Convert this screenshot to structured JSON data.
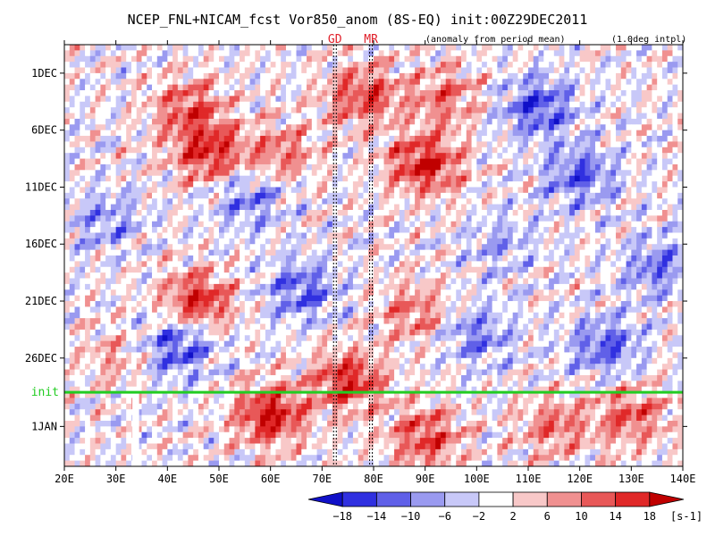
{
  "chart_data": {
    "type": "heatmap",
    "title": "NCEP_FNL+NICAM_fcst Vor850_anom (8S-EQ) init:00Z29DEC2011",
    "subtitle_left": "(anomaly from period mean)",
    "subtitle_right": "(1.0deg intpl)",
    "x_range": [
      20,
      140
    ],
    "x_ticks": [
      20,
      30,
      40,
      50,
      60,
      70,
      80,
      90,
      100,
      110,
      120,
      130,
      140
    ],
    "x_tick_labels": [
      "20E",
      "30E",
      "40E",
      "50E",
      "60E",
      "70E",
      "80E",
      "90E",
      "100E",
      "110E",
      "120E",
      "130E",
      "140E"
    ],
    "y_tick_labels": [
      "1DEC",
      "6DEC",
      "11DEC",
      "16DEC",
      "21DEC",
      "26DEC",
      "1JAN"
    ],
    "y_tick_days": [
      1,
      6,
      11,
      16,
      21,
      26,
      32
    ],
    "y_range_days": [
      -1.5,
      35.5
    ],
    "init_day": 29,
    "init_label": "init",
    "markers": [
      {
        "label": "GD",
        "lon": 72.5
      },
      {
        "label": "MR",
        "lon": 79.5
      }
    ],
    "colorbar": {
      "levels": [
        -18,
        -14,
        -10,
        -6,
        -2,
        2,
        6,
        10,
        14,
        18
      ],
      "labels": [
        "−18",
        "−14",
        "−10",
        "−6",
        "−2",
        "2",
        "6",
        "10",
        "14",
        "18"
      ],
      "colors": [
        "#1010c8",
        "#3030e0",
        "#6060e8",
        "#9a9af0",
        "#c8c8f8",
        "#ffffff",
        "#f8c8c8",
        "#f09090",
        "#e85858",
        "#e02828",
        "#c00000"
      ],
      "unit": "[s-1]"
    },
    "features": [
      {
        "lon": 44,
        "day": 4,
        "value": 12
      },
      {
        "lon": 48,
        "day": 8,
        "value": 16
      },
      {
        "lon": 56,
        "day": 12,
        "value": -10
      },
      {
        "lon": 62,
        "day": 8,
        "value": 10
      },
      {
        "lon": 66,
        "day": 20,
        "value": -12
      },
      {
        "lon": 78,
        "day": 3,
        "value": 14
      },
      {
        "lon": 90,
        "day": 9,
        "value": 18
      },
      {
        "lon": 94,
        "day": 3,
        "value": 10
      },
      {
        "lon": 112,
        "day": 4,
        "value": -14
      },
      {
        "lon": 120,
        "day": 10,
        "value": -12
      },
      {
        "lon": 46,
        "day": 21,
        "value": 16
      },
      {
        "lon": 42,
        "day": 25,
        "value": -14
      },
      {
        "lon": 88,
        "day": 22,
        "value": 10
      },
      {
        "lon": 100,
        "day": 24,
        "value": -10
      },
      {
        "lon": 125,
        "day": 25,
        "value": -12
      },
      {
        "lon": 75,
        "day": 28,
        "value": 16
      },
      {
        "lon": 60,
        "day": 31,
        "value": 18
      },
      {
        "lon": 90,
        "day": 33,
        "value": 14
      },
      {
        "lon": 130,
        "day": 31,
        "value": 12
      },
      {
        "lon": 28,
        "day": 14,
        "value": -8
      },
      {
        "lon": 30,
        "day": 26,
        "value": 6
      },
      {
        "lon": 105,
        "day": 16,
        "value": -6
      },
      {
        "lon": 135,
        "day": 18,
        "value": -10
      },
      {
        "lon": 115,
        "day": 32,
        "value": 10
      }
    ]
  }
}
